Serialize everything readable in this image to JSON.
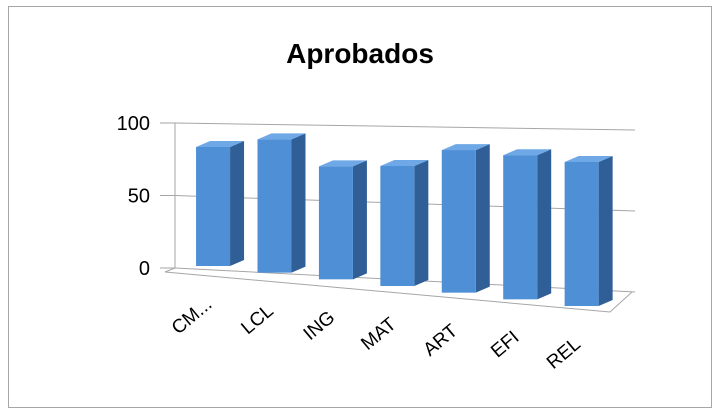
{
  "chart_data": {
    "type": "bar",
    "title": "Aprobados",
    "categories": [
      "CM...",
      "LCL",
      "ING",
      "MAT",
      "ART",
      "EFI",
      "REL"
    ],
    "values": [
      85,
      93,
      77,
      80,
      93,
      92,
      90
    ],
    "ylim": [
      0,
      100
    ],
    "yticks": [
      0,
      50,
      100
    ],
    "grid": true,
    "legend": "none",
    "bar_color": "#4F8FD6",
    "bar_side_color": "#2F5F96",
    "bar_top_color": "#6FA8E6",
    "grid_color": "#a6a6a6"
  }
}
